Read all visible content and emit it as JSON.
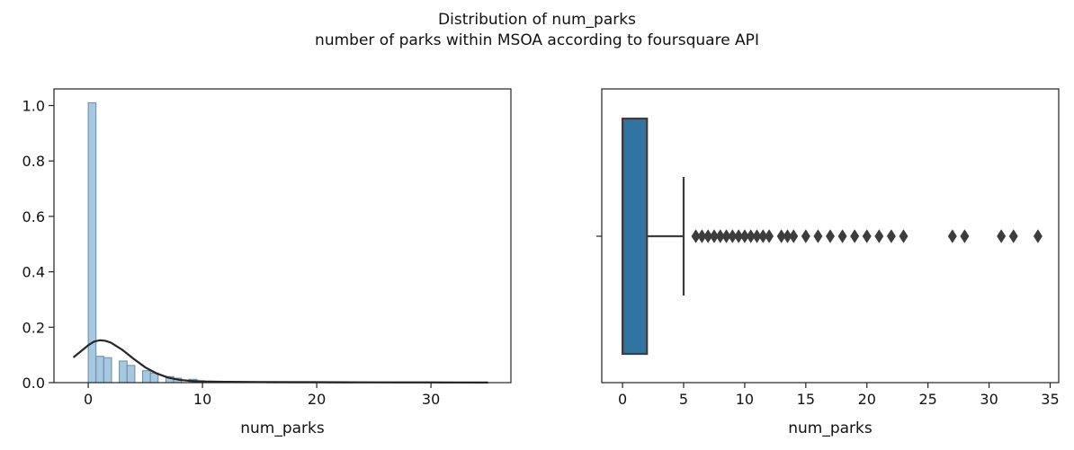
{
  "figure": {
    "title": "Distribution of num_parks",
    "subtitle": "number of parks within MSOA according to foursquare API"
  },
  "chart_data": [
    {
      "type": "bar",
      "subtype": "histogram with kde",
      "xlabel": "num_parks",
      "ylabel": "",
      "xlim": [
        -3,
        37
      ],
      "ylim": [
        0,
        1.06
      ],
      "xticks": [
        0,
        10,
        20,
        30
      ],
      "yticks": [
        0.0,
        0.2,
        0.4,
        0.6,
        0.8,
        1.0
      ],
      "ytick_labels": [
        "0.0",
        "0.2",
        "0.4",
        "0.6",
        "0.8",
        "1.0"
      ],
      "bin_width": 0.68,
      "bins": [
        {
          "x": 0.0,
          "height": 1.01
        },
        {
          "x": 0.68,
          "height": 0.095
        },
        {
          "x": 1.36,
          "height": 0.09
        },
        {
          "x": 2.72,
          "height": 0.078
        },
        {
          "x": 3.4,
          "height": 0.062
        },
        {
          "x": 4.76,
          "height": 0.043
        },
        {
          "x": 5.44,
          "height": 0.035
        },
        {
          "x": 6.8,
          "height": 0.022
        },
        {
          "x": 7.48,
          "height": 0.016
        },
        {
          "x": 8.84,
          "height": 0.012
        },
        {
          "x": 9.52,
          "height": 0.007
        },
        {
          "x": 10.2,
          "height": 0.005
        },
        {
          "x": 10.88,
          "height": 0.004
        },
        {
          "x": 11.56,
          "height": 0.003
        },
        {
          "x": 12.24,
          "height": 0.002
        },
        {
          "x": 12.92,
          "height": 0.002
        },
        {
          "x": 13.6,
          "height": 0.002
        },
        {
          "x": 14.28,
          "height": 0.002
        },
        {
          "x": 14.96,
          "height": 0.002
        },
        {
          "x": 15.64,
          "height": 0.001
        },
        {
          "x": 16.32,
          "height": 0.001
        },
        {
          "x": 17.0,
          "height": 0.001
        },
        {
          "x": 17.68,
          "height": 0.001
        },
        {
          "x": 18.36,
          "height": 0.001
        },
        {
          "x": 19.04,
          "height": 0.001
        },
        {
          "x": 19.72,
          "height": 0.001
        },
        {
          "x": 20.4,
          "height": 0.001
        },
        {
          "x": 21.08,
          "height": 0.001
        },
        {
          "x": 21.76,
          "height": 0.001
        },
        {
          "x": 22.44,
          "height": 0.001
        },
        {
          "x": 26.52,
          "height": 0.001
        },
        {
          "x": 27.2,
          "height": 0.001
        },
        {
          "x": 30.6,
          "height": 0.001
        },
        {
          "x": 31.28,
          "height": 0.001
        },
        {
          "x": 33.32,
          "height": 0.001
        }
      ],
      "kde": {
        "x": [
          -1.3,
          -0.5,
          0.0,
          0.5,
          1.0,
          1.5,
          2.0,
          3.0,
          4.0,
          5.0,
          6.0,
          7.0,
          8.0,
          9.0,
          10.0,
          12.0,
          15.0,
          20.0,
          25.0,
          30.0,
          35.0
        ],
        "y": [
          0.091,
          0.118,
          0.135,
          0.148,
          0.153,
          0.151,
          0.144,
          0.118,
          0.085,
          0.055,
          0.033,
          0.018,
          0.01,
          0.006,
          0.004,
          0.003,
          0.002,
          0.0015,
          0.001,
          0.0008,
          0.0005
        ]
      },
      "colors": {
        "bar": "#a6c8e0",
        "bar_edge": "#6b8aa3",
        "kde": "#262626"
      }
    },
    {
      "type": "box",
      "xlabel": "num_parks",
      "ylabel": "",
      "xlim": [
        -1.7,
        35.7
      ],
      "xticks": [
        0,
        5,
        10,
        15,
        20,
        25,
        30,
        35
      ],
      "box": {
        "q1": 0,
        "median": 0,
        "q3": 2,
        "whisker_low": 0,
        "whisker_high": 5
      },
      "outliers": [
        6,
        6.5,
        7,
        7.5,
        8,
        8.5,
        9,
        9.5,
        10,
        10.5,
        11,
        11.5,
        12,
        13,
        13.5,
        14,
        15,
        16,
        17,
        18,
        19,
        20,
        21,
        22,
        23,
        27,
        28,
        31,
        32,
        34
      ],
      "colors": {
        "box": "#3274a1",
        "line": "#3d3d3d"
      }
    }
  ]
}
